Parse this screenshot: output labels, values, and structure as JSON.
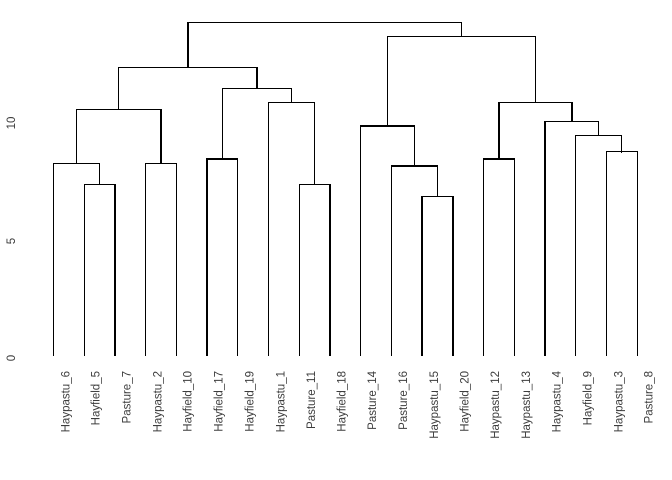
{
  "colors": {
    "background": "#ffffff",
    "line": "#000000",
    "label_text": "#3d3d3d"
  },
  "chart_data": {
    "type": "dendrogram",
    "title": "",
    "xlabel": "",
    "ylabel": "",
    "ylim": [
      0,
      14.5
    ],
    "yticks": [
      "0",
      "5",
      "10"
    ],
    "ytick_values": [
      0,
      5,
      10
    ],
    "grid": false,
    "legend": false,
    "leaves": [
      "Haypastu_6",
      "Hayfield_5",
      "Pasture_7",
      "Haypastu_2",
      "Hayfield_10",
      "Hayfield_17",
      "Hayfield_19",
      "Haypastu_1",
      "Pasture_11",
      "Hayfield_18",
      "Pasture_14",
      "Pasture_16",
      "Haypastu_15",
      "Hayfield_20",
      "Haypastu_12",
      "Haypastu_13",
      "Haypastu_4",
      "Hayfield_9",
      "Haypastu_3",
      "Pasture_8"
    ],
    "tree": {
      "h": 14.3,
      "children": [
        {
          "h": 12.4,
          "children": [
            {
              "h": 10.6,
              "children": [
                {
                  "h": 8.3,
                  "children": [
                    {
                      "leaf": "Haypastu_6"
                    },
                    {
                      "h": 7.4,
                      "children": [
                        {
                          "leaf": "Hayfield_5"
                        },
                        {
                          "leaf": "Pasture_7"
                        }
                      ]
                    }
                  ]
                },
                {
                  "h": 8.3,
                  "children": [
                    {
                      "leaf": "Haypastu_2"
                    },
                    {
                      "leaf": "Hayfield_10"
                    }
                  ]
                }
              ]
            },
            {
              "h": 11.5,
              "children": [
                {
                  "h": 8.5,
                  "children": [
                    {
                      "leaf": "Hayfield_17"
                    },
                    {
                      "leaf": "Hayfield_19"
                    }
                  ]
                },
                {
                  "h": 10.9,
                  "children": [
                    {
                      "leaf": "Haypastu_1"
                    },
                    {
                      "h": 7.4,
                      "children": [
                        {
                          "leaf": "Pasture_11"
                        },
                        {
                          "leaf": "Hayfield_18"
                        }
                      ]
                    }
                  ]
                }
              ]
            }
          ]
        },
        {
          "h": 13.7,
          "children": [
            {
              "h": 9.9,
              "children": [
                {
                  "leaf": "Pasture_14"
                },
                {
                  "h": 8.2,
                  "children": [
                    {
                      "leaf": "Pasture_16"
                    },
                    {
                      "h": 6.9,
                      "children": [
                        {
                          "leaf": "Haypastu_15"
                        },
                        {
                          "leaf": "Hayfield_20"
                        }
                      ]
                    }
                  ]
                }
              ]
            },
            {
              "h": 10.9,
              "children": [
                {
                  "h": 8.5,
                  "children": [
                    {
                      "leaf": "Haypastu_12"
                    },
                    {
                      "leaf": "Haypastu_13"
                    }
                  ]
                },
                {
                  "h": 10.1,
                  "children": [
                    {
                      "leaf": "Haypastu_4"
                    },
                    {
                      "h": 9.5,
                      "children": [
                        {
                          "leaf": "Hayfield_9"
                        },
                        {
                          "h": 8.8,
                          "children": [
                            {
                              "leaf": "Haypastu_3"
                            },
                            {
                              "leaf": "Pasture_8"
                            }
                          ]
                        }
                      ]
                    }
                  ]
                }
              ]
            }
          ]
        }
      ]
    }
  }
}
